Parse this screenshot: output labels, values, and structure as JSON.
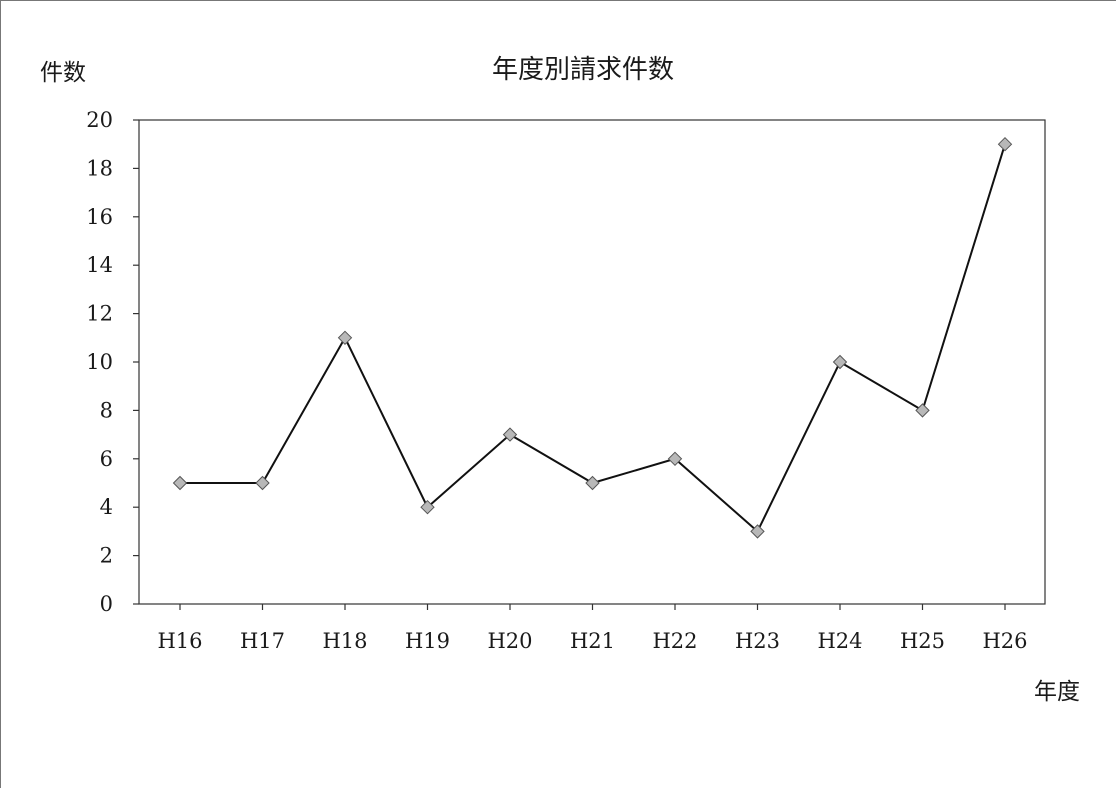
{
  "chart_data": {
    "type": "line",
    "title": "年度別請求件数",
    "xlabel": "年度",
    "ylabel": "件数",
    "categories": [
      "H16",
      "H17",
      "H18",
      "H19",
      "H20",
      "H21",
      "H22",
      "H23",
      "H24",
      "H25",
      "H26"
    ],
    "series": [
      {
        "values": [
          5,
          5,
          11,
          4,
          7,
          5,
          6,
          3,
          10,
          8,
          19
        ]
      }
    ],
    "ylim": [
      0,
      20
    ],
    "yticks": [
      "0",
      "2",
      "4",
      "6",
      "8",
      "10",
      "12",
      "14",
      "16",
      "18",
      "20"
    ],
    "grid": false,
    "marker": "diamond",
    "line_color": "#111111",
    "marker_color": "#b8b8b8"
  }
}
